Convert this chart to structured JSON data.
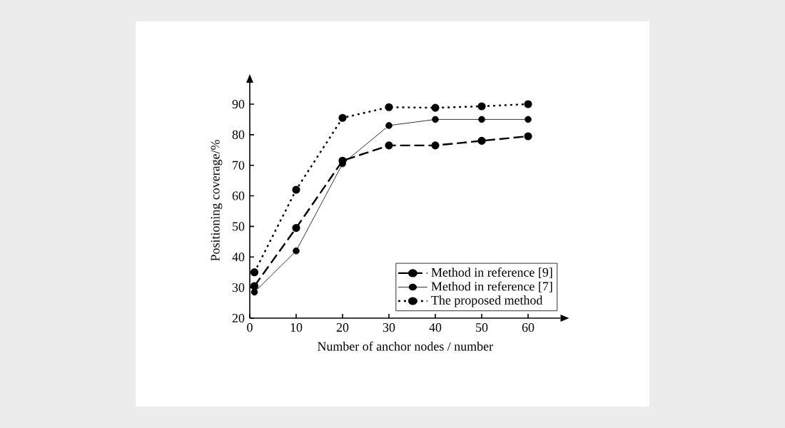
{
  "chart_data": {
    "type": "line",
    "xlabel": "Number of anchor nodes / number",
    "ylabel": "Positioning coverage/%",
    "x": [
      1,
      10,
      20,
      30,
      40,
      50,
      60
    ],
    "series": [
      {
        "name": "Method in reference [9]",
        "color": "#000000",
        "line_style": "dashed",
        "values": [
          30.5,
          49.5,
          71.5,
          76.5,
          76.5,
          78,
          79.5
        ]
      },
      {
        "name": "Method in reference [7]",
        "color": "#000000",
        "line_style": "solid",
        "values": [
          28.5,
          42,
          70.5,
          83,
          85,
          85,
          85
        ]
      },
      {
        "name": "The proposed method",
        "color": "#000000",
        "line_style": "dotted",
        "values": [
          35,
          62,
          85.5,
          89,
          88.8,
          89.3,
          90
        ]
      }
    ],
    "xlim": [
      0,
      67
    ],
    "ylim": [
      20,
      97
    ],
    "xticks": [
      0,
      10,
      20,
      30,
      40,
      50,
      60
    ],
    "yticks": [
      20,
      30,
      40,
      50,
      60,
      70,
      80,
      90
    ],
    "marker": "circle",
    "legend": "bottom right",
    "grid": false
  }
}
